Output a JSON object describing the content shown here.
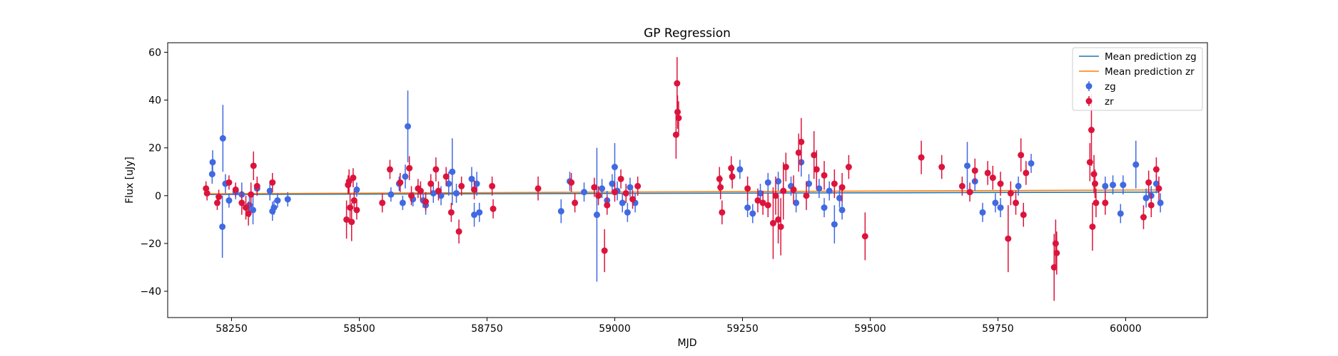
{
  "chart_data": {
    "type": "scatter",
    "title": "GP Regression",
    "xlabel": "MJD",
    "ylabel": "Flux [uJy]",
    "xlim": [
      58125,
      60160
    ],
    "ylim": [
      -51,
      64
    ],
    "xticks": [
      58250,
      58500,
      58750,
      59000,
      59250,
      59500,
      59750,
      60000
    ],
    "yticks": [
      -40,
      -20,
      0,
      20,
      40,
      60
    ],
    "grid": false,
    "legend": "top-right",
    "lines": [
      {
        "name": "Mean prediction zg",
        "color": "#1f77b4",
        "x": [
          58200,
          60065
        ],
        "y": [
          0.5,
          1.5
        ]
      },
      {
        "name": "Mean prediction zr",
        "color": "#ff7f0e",
        "x": [
          58200,
          60065
        ],
        "y": [
          0.8,
          2.4
        ]
      }
    ],
    "series": [
      {
        "name": "zg",
        "color": "#4169e1",
        "points": [
          [
            58212,
            9.0,
            4
          ],
          [
            58213,
            14.0,
            5
          ],
          [
            58232,
            -13.0,
            13
          ],
          [
            58233,
            24.0,
            14
          ],
          [
            58238,
            5.0,
            4
          ],
          [
            58245,
            -2.0,
            3
          ],
          [
            58258,
            1.5,
            3
          ],
          [
            58270,
            0.5,
            5
          ],
          [
            58285,
            -4.0,
            5
          ],
          [
            58292,
            -6.0,
            6
          ],
          [
            58300,
            3.0,
            3
          ],
          [
            58325,
            2.0,
            4
          ],
          [
            58330,
            -6.5,
            4
          ],
          [
            58333,
            -5.0,
            3
          ],
          [
            58340,
            -2.0,
            3
          ],
          [
            58360,
            -1.5,
            3
          ],
          [
            58495,
            2.5,
            3
          ],
          [
            58562,
            0.5,
            3
          ],
          [
            58578,
            5.0,
            3
          ],
          [
            58585,
            -3.0,
            3
          ],
          [
            58590,
            8.0,
            5
          ],
          [
            58595,
            29.0,
            15
          ],
          [
            58605,
            -1.5,
            3
          ],
          [
            58625,
            -2.0,
            3
          ],
          [
            58630,
            -4.0,
            4
          ],
          [
            58645,
            1.0,
            4
          ],
          [
            58660,
            0.0,
            4
          ],
          [
            58675,
            5.0,
            5
          ],
          [
            58682,
            10.0,
            14
          ],
          [
            58690,
            1.0,
            4
          ],
          [
            58720,
            7.0,
            5
          ],
          [
            58725,
            -8.0,
            5
          ],
          [
            58730,
            5.0,
            5
          ],
          [
            58735,
            -7.0,
            4
          ],
          [
            58895,
            -6.5,
            5
          ],
          [
            58912,
            6.0,
            4
          ],
          [
            58940,
            1.5,
            4
          ],
          [
            58965,
            -8.0,
            28
          ],
          [
            58975,
            3.0,
            4
          ],
          [
            58985,
            -2.0,
            4
          ],
          [
            58995,
            5.0,
            4
          ],
          [
            59000,
            12.0,
            10
          ],
          [
            59005,
            2.0,
            4
          ],
          [
            59015,
            -3.0,
            4
          ],
          [
            59025,
            -7.0,
            4
          ],
          [
            59030,
            3.5,
            4
          ],
          [
            59040,
            -3.0,
            4
          ],
          [
            59245,
            11.0,
            4
          ],
          [
            59260,
            -5.0,
            4
          ],
          [
            59270,
            -7.5,
            4
          ],
          [
            59285,
            1.0,
            4
          ],
          [
            59300,
            5.5,
            4
          ],
          [
            59320,
            6.0,
            4
          ],
          [
            59345,
            4.0,
            4
          ],
          [
            59355,
            -3.0,
            4
          ],
          [
            59365,
            14.0,
            6
          ],
          [
            59380,
            5.0,
            4
          ],
          [
            59400,
            3.0,
            4
          ],
          [
            59410,
            -5.0,
            4
          ],
          [
            59420,
            2.0,
            4
          ],
          [
            59430,
            -12.0,
            8
          ],
          [
            59440,
            -1.0,
            4
          ],
          [
            59445,
            -6.0,
            4
          ],
          [
            59690,
            12.5,
            10
          ],
          [
            59705,
            6.0,
            4
          ],
          [
            59720,
            -7.0,
            4
          ],
          [
            59745,
            -3.0,
            4
          ],
          [
            59755,
            -5.0,
            4
          ],
          [
            59790,
            4.0,
            4
          ],
          [
            59815,
            13.5,
            4
          ],
          [
            59960,
            4.0,
            4
          ],
          [
            59975,
            4.5,
            4
          ],
          [
            59990,
            -7.5,
            4
          ],
          [
            59995,
            4.5,
            4
          ],
          [
            60020,
            13.0,
            10
          ],
          [
            60040,
            -1.0,
            4
          ],
          [
            60050,
            0.0,
            4
          ],
          [
            60060,
            5.0,
            4
          ],
          [
            60068,
            -3.0,
            4
          ]
        ]
      },
      {
        "name": "zr",
        "color": "#dc143c",
        "points": [
          [
            58200,
            3.0,
            3
          ],
          [
            58202,
            1.0,
            3
          ],
          [
            58222,
            -3.0,
            3
          ],
          [
            58225,
            -0.5,
            3
          ],
          [
            58245,
            5.5,
            3
          ],
          [
            58258,
            2.5,
            3
          ],
          [
            58270,
            -3.0,
            5
          ],
          [
            58278,
            -5.0,
            5
          ],
          [
            58283,
            -7.5,
            5
          ],
          [
            58288,
            0.5,
            5
          ],
          [
            58293,
            12.5,
            6
          ],
          [
            58300,
            4.0,
            4
          ],
          [
            58330,
            5.5,
            4
          ],
          [
            58475,
            -10.0,
            8
          ],
          [
            58478,
            4.5,
            4
          ],
          [
            58480,
            6.0,
            5
          ],
          [
            58482,
            -5.0,
            6
          ],
          [
            58485,
            -11.0,
            8
          ],
          [
            58488,
            7.5,
            4
          ],
          [
            58490,
            -2.0,
            4
          ],
          [
            58495,
            -6.0,
            4
          ],
          [
            58545,
            -3.0,
            4
          ],
          [
            58560,
            11.0,
            4
          ],
          [
            58580,
            5.5,
            4
          ],
          [
            58598,
            11.5,
            5
          ],
          [
            58602,
            0.0,
            4
          ],
          [
            58615,
            3.0,
            4
          ],
          [
            58620,
            2.0,
            4
          ],
          [
            58630,
            -2.5,
            4
          ],
          [
            58640,
            5.0,
            4
          ],
          [
            58650,
            11.0,
            5
          ],
          [
            58655,
            2.0,
            4
          ],
          [
            58670,
            8.0,
            4
          ],
          [
            58680,
            -7.0,
            4
          ],
          [
            58695,
            -15.0,
            5
          ],
          [
            58700,
            4.0,
            4
          ],
          [
            58725,
            2.5,
            4
          ],
          [
            58760,
            4.0,
            4
          ],
          [
            58762,
            -5.5,
            4
          ],
          [
            58850,
            3.0,
            5
          ],
          [
            58915,
            5.5,
            4
          ],
          [
            58922,
            -3.0,
            4
          ],
          [
            58960,
            3.5,
            4
          ],
          [
            58968,
            0.0,
            4
          ],
          [
            58980,
            -23.0,
            9
          ],
          [
            58985,
            -4.0,
            4
          ],
          [
            59000,
            1.5,
            4
          ],
          [
            59012,
            7.0,
            4
          ],
          [
            59022,
            1.0,
            4
          ],
          [
            59035,
            -1.5,
            4
          ],
          [
            59045,
            4.0,
            4
          ],
          [
            59120,
            25.5,
            10
          ],
          [
            59122,
            47.0,
            11
          ],
          [
            59123,
            35.0,
            7
          ],
          [
            59125,
            32.5,
            7
          ],
          [
            59205,
            7.0,
            5
          ],
          [
            59207,
            3.5,
            5
          ],
          [
            59210,
            -7.0,
            5
          ],
          [
            59228,
            11.5,
            5
          ],
          [
            59230,
            8.0,
            5
          ],
          [
            59260,
            3.0,
            5
          ],
          [
            59280,
            -2.0,
            5
          ],
          [
            59290,
            -3.0,
            5
          ],
          [
            59300,
            -4.0,
            5
          ],
          [
            59310,
            -11.5,
            15
          ],
          [
            59315,
            0.0,
            8
          ],
          [
            59320,
            -10.0,
            10
          ],
          [
            59325,
            -13.0,
            12
          ],
          [
            59330,
            2.0,
            12
          ],
          [
            59335,
            12.0,
            6
          ],
          [
            59350,
            2.5,
            6
          ],
          [
            59360,
            18.0,
            8
          ],
          [
            59365,
            22.5,
            10
          ],
          [
            59375,
            0.0,
            6
          ],
          [
            59390,
            17.0,
            10
          ],
          [
            59395,
            11.0,
            8
          ],
          [
            59410,
            8.5,
            6
          ],
          [
            59430,
            5.0,
            6
          ],
          [
            59445,
            3.5,
            6
          ],
          [
            59458,
            12.0,
            5
          ],
          [
            59490,
            -17.0,
            10
          ],
          [
            59600,
            16.0,
            7
          ],
          [
            59640,
            12.0,
            5
          ],
          [
            59680,
            4.0,
            4
          ],
          [
            59695,
            1.5,
            4
          ],
          [
            59705,
            10.5,
            5
          ],
          [
            59730,
            9.5,
            5
          ],
          [
            59740,
            7.5,
            5
          ],
          [
            59755,
            5.0,
            5
          ],
          [
            59770,
            -18.0,
            14
          ],
          [
            59775,
            1.0,
            5
          ],
          [
            59785,
            -3.0,
            5
          ],
          [
            59795,
            17.0,
            7
          ],
          [
            59800,
            -8.0,
            5
          ],
          [
            59805,
            9.5,
            5
          ],
          [
            59860,
            -30.0,
            14
          ],
          [
            59863,
            -20.0,
            10
          ],
          [
            59865,
            -24.0,
            9
          ],
          [
            59930,
            14.0,
            8
          ],
          [
            59933,
            27.5,
            15
          ],
          [
            59935,
            -13.0,
            10
          ],
          [
            59938,
            9.0,
            8
          ],
          [
            59940,
            5.0,
            6
          ],
          [
            59942,
            -3.0,
            6
          ],
          [
            59960,
            -3.0,
            5
          ],
          [
            60035,
            -9.0,
            5
          ],
          [
            60045,
            5.5,
            5
          ],
          [
            60050,
            -4.0,
            5
          ],
          [
            60060,
            11.0,
            5
          ],
          [
            60065,
            3.0,
            5
          ]
        ]
      }
    ]
  }
}
